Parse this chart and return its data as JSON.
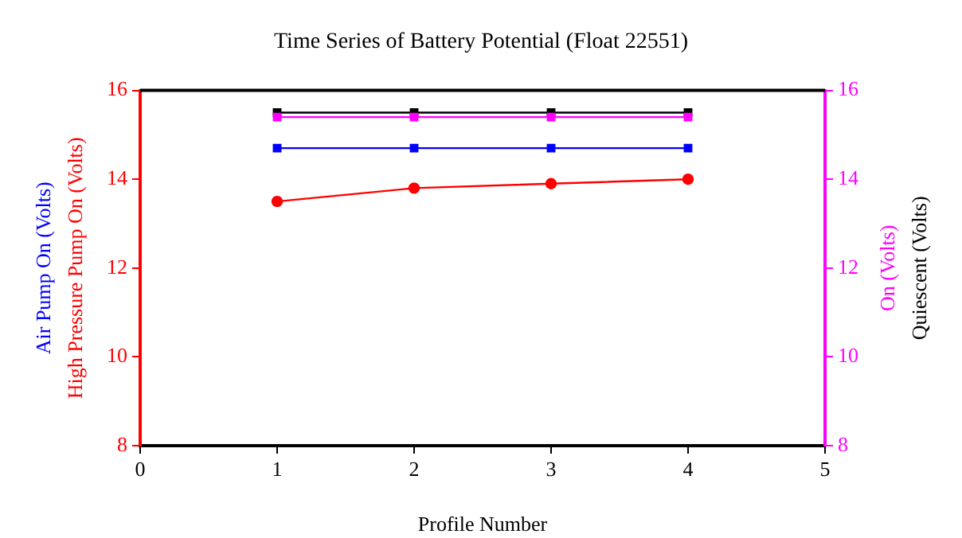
{
  "chart_data": {
    "type": "line",
    "title": "Time Series of Battery Potential (Float 22551)",
    "xlabel": "Profile Number",
    "x": [
      1,
      2,
      3,
      4
    ],
    "xlim": [
      0,
      5
    ],
    "xticks": [
      0,
      1,
      2,
      3,
      4,
      5
    ],
    "ylim": [
      8,
      16
    ],
    "yticks": [
      8,
      10,
      12,
      14,
      16
    ],
    "y2lim": [
      8,
      16
    ],
    "y2ticks": [
      8,
      10,
      12,
      14,
      16
    ],
    "grid": false,
    "legend": "right",
    "series": [
      {
        "name": "Air Pump On (Volts)",
        "color": "#0000ff",
        "marker": "square",
        "values": [
          14.7,
          14.7,
          14.7,
          14.7
        ]
      },
      {
        "name": "High Pressure Pump On (Volts)",
        "color": "#ff0000",
        "marker": "circle",
        "values": [
          13.5,
          13.8,
          13.9,
          14.0
        ]
      },
      {
        "name": "On (Volts)",
        "color": "#ff00ff",
        "marker": "square",
        "axis": "y2",
        "values": [
          15.4,
          15.4,
          15.4,
          15.4
        ]
      },
      {
        "name": "Quiescent (Volts)",
        "color": "#000000",
        "marker": "square",
        "axis": "y2",
        "values": [
          15.5,
          15.5,
          15.5,
          15.5
        ]
      }
    ]
  }
}
